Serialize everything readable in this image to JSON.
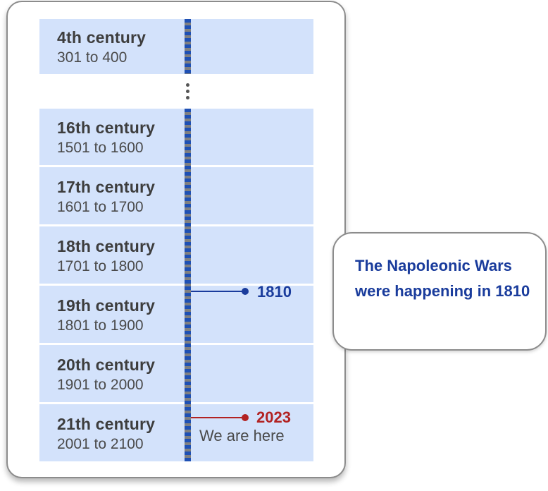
{
  "rows": [
    {
      "title": "4th century",
      "range": "301 to 400"
    },
    {
      "title": "16th century",
      "range": "1501 to 1600"
    },
    {
      "title": "17th century",
      "range": "1601 to 1700"
    },
    {
      "title": "18th century",
      "range": "1701 to 1800"
    },
    {
      "title": "19th century",
      "range": "1801 to 1900"
    },
    {
      "title": "20th century",
      "range": "1901 to 2000"
    },
    {
      "title": "21th century",
      "range": "2001 to 2100"
    }
  ],
  "markers": {
    "event": {
      "year": "1810",
      "color": "#1a3c9c"
    },
    "now": {
      "year": "2023",
      "note": "We are here",
      "color": "#b22222"
    }
  },
  "callout": {
    "text": "The Napoleonic Wars were happening in 1810"
  },
  "colors": {
    "row_fill": "#d3e2fb",
    "axis_blue": "#1e50b4",
    "axis_gray": "#808080"
  }
}
